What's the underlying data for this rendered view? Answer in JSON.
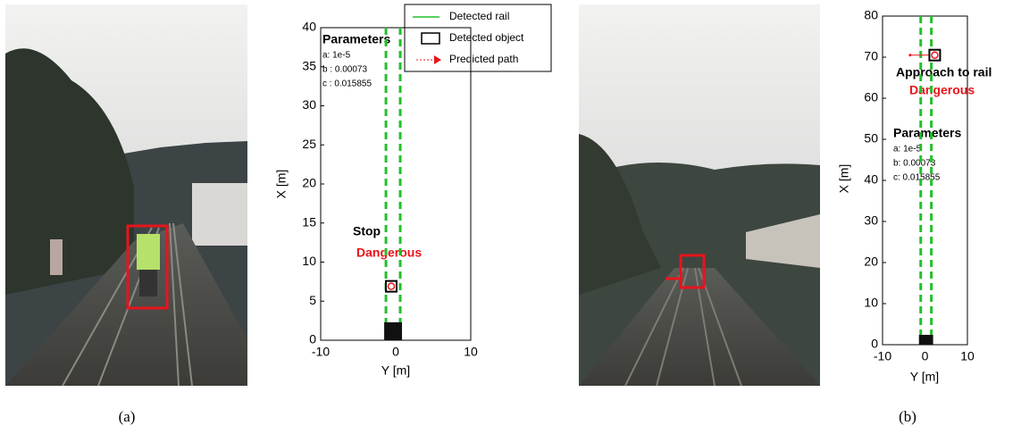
{
  "legend": [
    {
      "label": "Detected rail"
    },
    {
      "label": "Detected object"
    },
    {
      "label": "Predicted path"
    }
  ],
  "panels": [
    {
      "caption": "(a)",
      "plot": {
        "xlabel": "Y [m]",
        "ylabel": "X [m]",
        "xlim": [
          -10,
          10
        ],
        "ylim": [
          0,
          40
        ],
        "xticks": [
          -10,
          0,
          10
        ],
        "yticks": [
          0,
          5,
          10,
          15,
          20,
          25,
          30,
          35,
          40
        ],
        "rails": [
          -1.3,
          0.6
        ],
        "train_length": 2.3,
        "object": {
          "lateral": -0.6,
          "distance": 6.9
        },
        "status": "Stop",
        "alert": "Dangerous",
        "parameters": {
          "title": "Parameters",
          "lines": [
            "a: 1e-5",
            "b : 0.00073",
            "c : 0.015855"
          ]
        }
      }
    },
    {
      "caption": "(b)",
      "plot": {
        "xlabel": "Y [m]",
        "ylabel": "X [m]",
        "xlim": [
          -10,
          10
        ],
        "ylim": [
          0,
          80
        ],
        "xticks": [
          -10,
          0,
          10
        ],
        "yticks": [
          0,
          10,
          20,
          30,
          40,
          50,
          60,
          70,
          80
        ],
        "rails": [
          -1,
          1.5
        ],
        "train_length": 2.4,
        "object": {
          "lateral": 2.3,
          "distance": 70.5,
          "path_to": -3.5
        },
        "status": "Approach to rail",
        "alert": "Dangerous",
        "parameters": {
          "title": "Parameters",
          "lines": [
            "a: 1e-5",
            "b: 0.00073",
            "c: 0.015855"
          ]
        }
      }
    }
  ]
}
